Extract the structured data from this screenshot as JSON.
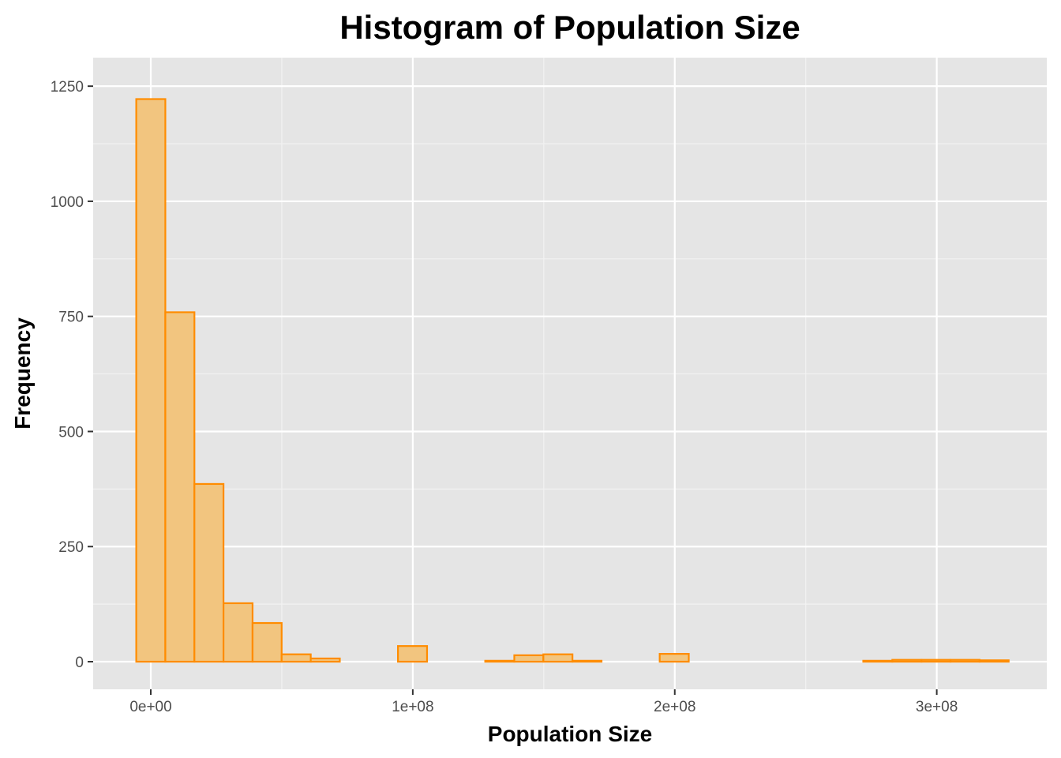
{
  "chart_data": {
    "type": "bar",
    "subtype": "histogram",
    "title": "Histogram of Population Size",
    "xlabel": "Population Size",
    "ylabel": "Frequency",
    "bin_width": 11100000,
    "bin_start": -5550000,
    "x_ticks": [
      0,
      100000000,
      200000000,
      300000000
    ],
    "x_tick_labels": [
      "0e+00",
      "1e+08",
      "2e+08",
      "3e+08"
    ],
    "y_ticks": [
      0,
      250,
      500,
      750,
      1000,
      1250
    ],
    "y_tick_labels": [
      "0",
      "250",
      "500",
      "750",
      "1000",
      "1250"
    ],
    "xlim": [
      -22000000,
      342000000
    ],
    "ylim": [
      -60,
      1312
    ],
    "values": [
      1222,
      759,
      386,
      127,
      84,
      16,
      7,
      0,
      0,
      34,
      0,
      0,
      2,
      14,
      16,
      2,
      0,
      0,
      17,
      0,
      0,
      0,
      0,
      0,
      0,
      2,
      4,
      4,
      4,
      3
    ],
    "grid": true,
    "colors": {
      "bar_fill": "#f2c57f",
      "bar_stroke": "#ff8c00",
      "panel_bg": "#e5e5e5",
      "grid_major": "#ffffff",
      "grid_minor": "#f2f2f2",
      "tick": "#333333"
    }
  }
}
